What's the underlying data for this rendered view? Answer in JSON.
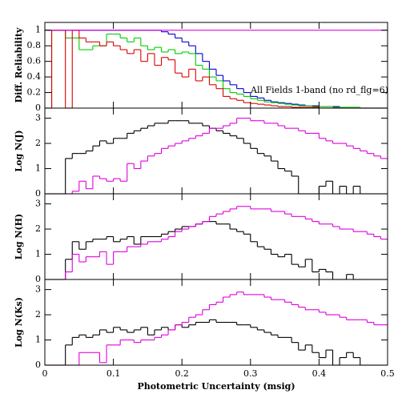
{
  "chart_data": [
    {
      "type": "histogram",
      "y_label": "Diff. Reliability",
      "annotation": "All Fields 1-band (no rd_flg=6)",
      "bins": [
        0,
        0.01,
        0.02,
        0.03,
        0.04,
        0.05,
        0.06,
        0.07,
        0.08,
        0.09,
        0.1,
        0.11,
        0.12,
        0.13,
        0.14,
        0.15,
        0.16,
        0.17,
        0.18,
        0.19,
        0.2,
        0.21,
        0.22,
        0.23,
        0.24,
        0.25,
        0.26,
        0.27,
        0.28,
        0.29,
        0.3,
        0.31,
        0.32,
        0.33,
        0.34,
        0.35,
        0.36,
        0.37,
        0.38,
        0.39,
        0.4,
        0.41,
        0.42,
        0.43,
        0.44,
        0.45,
        0.46,
        0.47,
        0.48,
        0.49,
        0.5
      ],
      "xlim": [
        0,
        0.5
      ],
      "ylim": [
        0,
        1.1
      ],
      "yticks": [
        0,
        0.2,
        0.4,
        0.6,
        0.8,
        1
      ],
      "series": [
        {
          "color": "#0000cc",
          "values": [
            1,
            1,
            1,
            1,
            1,
            1,
            1,
            1,
            1,
            1,
            1,
            1,
            1,
            1,
            1,
            1,
            1,
            0.98,
            0.95,
            0.9,
            0.85,
            0.8,
            0.7,
            0.6,
            0.5,
            0.42,
            0.35,
            0.3,
            0.25,
            0.2,
            0.15,
            0.13,
            0.1,
            0.08,
            0.07,
            0.06,
            0.05,
            0.04,
            0.03,
            0.03,
            0.02,
            0.02,
            0.02,
            0.01,
            0.01,
            0.01,
            0,
            0,
            0,
            0
          ]
        },
        {
          "color": "#00cc00",
          "values": [
            0,
            1,
            1,
            0.9,
            0.9,
            0.75,
            0.75,
            0.8,
            0.8,
            0.95,
            0.95,
            0.9,
            0.85,
            0.9,
            0.8,
            0.75,
            0.78,
            0.72,
            0.75,
            0.7,
            0.72,
            0.7,
            0.55,
            0.5,
            0.4,
            0.35,
            0.25,
            0.2,
            0.18,
            0.15,
            0.12,
            0.1,
            0.08,
            0.07,
            0.06,
            0.05,
            0.04,
            0.03,
            0.03,
            0.02,
            0.02,
            0.02,
            0.01,
            0.01,
            0.01,
            0.01,
            0,
            0,
            0,
            0
          ]
        },
        {
          "color": "#dd0000",
          "values": [
            0,
            1,
            1,
            0,
            1,
            0.9,
            0.85,
            0.85,
            0.8,
            0.85,
            0.8,
            0.75,
            0.7,
            0.75,
            0.6,
            0.7,
            0.55,
            0.65,
            0.62,
            0.45,
            0.4,
            0.5,
            0.35,
            0.4,
            0.3,
            0.25,
            0.15,
            0.12,
            0.1,
            0.07,
            0.06,
            0.05,
            0.04,
            0.03,
            0.02,
            0.02,
            0.01,
            0.01,
            0.01,
            0.01,
            0,
            0,
            0,
            0,
            0,
            0,
            0,
            0,
            0,
            0
          ]
        },
        {
          "color": "#dd00dd",
          "values": [
            1,
            1,
            1,
            1,
            1,
            1,
            1,
            1,
            1,
            1,
            1,
            1,
            1,
            1,
            1,
            1,
            1,
            1,
            1,
            1,
            1,
            1,
            1,
            1,
            1,
            1,
            1,
            1,
            1,
            1,
            1,
            1,
            1,
            1,
            1,
            1,
            1,
            1,
            1,
            1,
            1,
            1,
            1,
            1,
            1,
            1,
            1,
            1,
            1,
            1
          ]
        }
      ]
    },
    {
      "type": "histogram",
      "y_label": "Log N(J)",
      "bins": [
        0,
        0.01,
        0.02,
        0.03,
        0.04,
        0.05,
        0.06,
        0.07,
        0.08,
        0.09,
        0.1,
        0.11,
        0.12,
        0.13,
        0.14,
        0.15,
        0.16,
        0.17,
        0.18,
        0.19,
        0.2,
        0.21,
        0.22,
        0.23,
        0.24,
        0.25,
        0.26,
        0.27,
        0.28,
        0.29,
        0.3,
        0.31,
        0.32,
        0.33,
        0.34,
        0.35,
        0.36,
        0.37,
        0.38,
        0.39,
        0.4,
        0.41,
        0.42,
        0.43,
        0.44,
        0.45,
        0.46,
        0.47,
        0.48,
        0.49,
        0.5
      ],
      "xlim": [
        0,
        0.5
      ],
      "ylim": [
        0,
        3.4
      ],
      "yticks": [
        0,
        1,
        2,
        3
      ],
      "series": [
        {
          "color": "#000000",
          "values": [
            0,
            0,
            0,
            1.4,
            1.6,
            1.6,
            1.7,
            1.9,
            2.1,
            2.0,
            2.2,
            2.2,
            2.4,
            2.5,
            2.6,
            2.7,
            2.8,
            2.8,
            2.9,
            2.9,
            2.9,
            2.8,
            2.8,
            2.7,
            2.6,
            2.5,
            2.4,
            2.3,
            2.2,
            2.0,
            1.8,
            1.6,
            1.5,
            1.3,
            1.0,
            0.9,
            0.7,
            0,
            0,
            0,
            0.3,
            0.5,
            0,
            0.3,
            0,
            0.3,
            0,
            0,
            0,
            0
          ]
        },
        {
          "color": "#dd00dd",
          "values": [
            0,
            0,
            0,
            0,
            0.1,
            0.5,
            0.2,
            0.7,
            0.6,
            0.5,
            0.6,
            0.5,
            1.2,
            1.0,
            1.3,
            1.5,
            1.6,
            1.8,
            1.9,
            2.0,
            2.1,
            2.2,
            2.3,
            2.4,
            2.6,
            2.6,
            2.7,
            2.8,
            3.0,
            3.0,
            2.9,
            2.9,
            2.8,
            2.8,
            2.7,
            2.6,
            2.6,
            2.5,
            2.4,
            2.4,
            2.2,
            2.1,
            2.0,
            2.0,
            1.9,
            1.8,
            1.7,
            1.6,
            1.5,
            1.4
          ]
        }
      ]
    },
    {
      "type": "histogram",
      "y_label": "Log N(H)",
      "bins": [
        0,
        0.01,
        0.02,
        0.03,
        0.04,
        0.05,
        0.06,
        0.07,
        0.08,
        0.09,
        0.1,
        0.11,
        0.12,
        0.13,
        0.14,
        0.15,
        0.16,
        0.17,
        0.18,
        0.19,
        0.2,
        0.21,
        0.22,
        0.23,
        0.24,
        0.25,
        0.26,
        0.27,
        0.28,
        0.29,
        0.3,
        0.31,
        0.32,
        0.33,
        0.34,
        0.35,
        0.36,
        0.37,
        0.38,
        0.39,
        0.4,
        0.41,
        0.42,
        0.43,
        0.44,
        0.45,
        0.46,
        0.47,
        0.48,
        0.49,
        0.5
      ],
      "xlim": [
        0,
        0.5
      ],
      "ylim": [
        0,
        3.4
      ],
      "yticks": [
        0,
        1,
        2,
        3
      ],
      "series": [
        {
          "color": "#000000",
          "values": [
            0,
            0,
            0,
            0.8,
            1.5,
            1.2,
            1.5,
            1.6,
            1.6,
            1.7,
            1.5,
            1.6,
            1.7,
            1.4,
            1.7,
            1.7,
            1.7,
            1.8,
            1.9,
            2.0,
            2.1,
            2.1,
            2.2,
            2.3,
            2.3,
            2.2,
            2.2,
            2.0,
            1.9,
            1.8,
            1.5,
            1.3,
            1.2,
            1.0,
            0.9,
            1.0,
            0.6,
            0.5,
            0.8,
            0.3,
            0.4,
            0.3,
            0,
            0,
            0.2,
            0,
            0,
            0,
            0,
            0
          ]
        },
        {
          "color": "#dd00dd",
          "values": [
            0,
            0,
            0,
            0.3,
            1.0,
            0.7,
            0.9,
            0.9,
            1.1,
            0.6,
            1.1,
            1.1,
            1.3,
            1.3,
            1.4,
            1.5,
            1.5,
            1.6,
            1.7,
            1.9,
            2.0,
            2.1,
            2.2,
            2.3,
            2.5,
            2.6,
            2.7,
            2.8,
            2.9,
            2.9,
            2.8,
            2.8,
            2.8,
            2.7,
            2.7,
            2.6,
            2.5,
            2.5,
            2.4,
            2.3,
            2.2,
            2.2,
            2.1,
            2.0,
            2.0,
            1.9,
            1.9,
            1.8,
            1.7,
            1.6
          ]
        }
      ]
    },
    {
      "type": "histogram",
      "y_label": "Log N(Ks)",
      "x_label": "Photometric Uncertainty (msig)",
      "bins": [
        0,
        0.01,
        0.02,
        0.03,
        0.04,
        0.05,
        0.06,
        0.07,
        0.08,
        0.09,
        0.1,
        0.11,
        0.12,
        0.13,
        0.14,
        0.15,
        0.16,
        0.17,
        0.18,
        0.19,
        0.2,
        0.21,
        0.22,
        0.23,
        0.24,
        0.25,
        0.26,
        0.27,
        0.28,
        0.29,
        0.3,
        0.31,
        0.32,
        0.33,
        0.34,
        0.35,
        0.36,
        0.37,
        0.38,
        0.39,
        0.4,
        0.41,
        0.42,
        0.43,
        0.44,
        0.45,
        0.46,
        0.47,
        0.48,
        0.49,
        0.5
      ],
      "xlim": [
        0,
        0.5
      ],
      "xticks": [
        0,
        0.1,
        0.2,
        0.3,
        0.4,
        0.5
      ],
      "ylim": [
        0,
        3.4
      ],
      "yticks": [
        0,
        1,
        2,
        3
      ],
      "series": [
        {
          "color": "#000000",
          "values": [
            0,
            0,
            0,
            0.8,
            1.1,
            1.2,
            1.1,
            1.2,
            1.4,
            1.3,
            1.5,
            1.4,
            1.3,
            1.4,
            1.5,
            1.2,
            1.4,
            1.5,
            1.4,
            1.6,
            1.5,
            1.6,
            1.7,
            1.7,
            1.8,
            1.7,
            1.7,
            1.7,
            1.6,
            1.6,
            1.5,
            1.4,
            1.3,
            1.2,
            1.1,
            1.1,
            0.9,
            0.6,
            0.8,
            0.5,
            0.3,
            0.6,
            0,
            0.3,
            0.5,
            0.3,
            0,
            0,
            0,
            0
          ]
        },
        {
          "color": "#dd00dd",
          "values": [
            0,
            0,
            0,
            0,
            0,
            0.5,
            0.5,
            0.5,
            0.1,
            0.8,
            0.8,
            1.0,
            1.0,
            0.9,
            1.0,
            1.0,
            1.1,
            1.2,
            1.4,
            1.6,
            1.7,
            1.9,
            2.0,
            2.2,
            2.4,
            2.5,
            2.7,
            2.8,
            2.9,
            2.8,
            2.8,
            2.8,
            2.7,
            2.6,
            2.6,
            2.5,
            2.4,
            2.3,
            2.2,
            2.2,
            2.1,
            2.0,
            2.0,
            1.9,
            1.8,
            1.8,
            1.8,
            1.7,
            1.6,
            1.6
          ]
        }
      ]
    }
  ]
}
